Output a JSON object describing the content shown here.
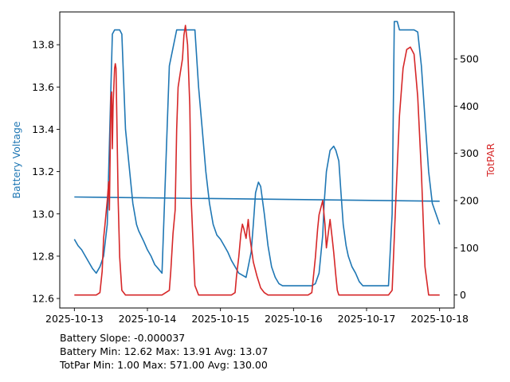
{
  "colors": {
    "battery": "#1f77b4",
    "par": "#d62728",
    "axes": "#000000"
  },
  "stats": {
    "slope": "Battery Slope: -0.000037",
    "battery": "Battery Min: 12.62 Max: 13.91 Avg: 13.07",
    "par": "TotPar Min: 1.00 Max: 571.00 Avg: 130.00"
  },
  "chart_data": {
    "type": "line",
    "x_unit": "days since 2025-10-13",
    "xlim": [
      -0.2,
      5.2
    ],
    "x_ticks": [
      0,
      1,
      2,
      3,
      4,
      5
    ],
    "x_tick_labels": [
      "2025-10-13",
      "2025-10-14",
      "2025-10-15",
      "2025-10-16",
      "2025-10-17",
      "2025-10-18"
    ],
    "ylabel_left": "Battery Voltage",
    "ylim_left": [
      12.555,
      13.955
    ],
    "y_ticks_left": [
      12.6,
      12.8,
      13.0,
      13.2,
      13.4,
      13.6,
      13.8
    ],
    "y_tick_labels_left": [
      "12.6",
      "12.8",
      "13.0",
      "13.2",
      "13.4",
      "13.6",
      "13.8"
    ],
    "ylabel_right": "TotPAR",
    "ylim_right": [
      -27.5,
      599.5
    ],
    "y_ticks_right": [
      0,
      100,
      200,
      300,
      400,
      500
    ],
    "y_tick_labels_right": [
      "0",
      "100",
      "200",
      "300",
      "400",
      "500"
    ],
    "grid": false,
    "legend": "none",
    "series": [
      {
        "axis": "left",
        "x": [
          0.0,
          0.05,
          0.1,
          0.15,
          0.2,
          0.25,
          0.3,
          0.35,
          0.4,
          0.45,
          0.5,
          0.52,
          0.55,
          0.57,
          0.6,
          0.62,
          0.65,
          0.7,
          0.8,
          0.85,
          0.88,
          0.95,
          1.0,
          1.05,
          1.1,
          1.15,
          1.2,
          1.3,
          1.4,
          1.45,
          1.5,
          1.55,
          1.58,
          1.62,
          1.65,
          1.7,
          1.75,
          1.8,
          1.85,
          1.9,
          1.95,
          2.0,
          2.05,
          2.1,
          2.15,
          2.2,
          2.25,
          2.3,
          2.35,
          2.38,
          2.42,
          2.45,
          2.48,
          2.52,
          2.55,
          2.6,
          2.65,
          2.7,
          2.75,
          2.8,
          2.85,
          2.9,
          2.95,
          3.0,
          3.05,
          3.1,
          3.15,
          3.2,
          3.25,
          3.3,
          3.35,
          3.4,
          3.42,
          3.45,
          3.5,
          3.55,
          3.58,
          3.62,
          3.65,
          3.68,
          3.72,
          3.75,
          3.8,
          3.85,
          3.9,
          3.95,
          4.0,
          4.05,
          4.1,
          4.15,
          4.2,
          4.25,
          4.3,
          4.35,
          4.38,
          4.42,
          4.45,
          4.5,
          4.55,
          4.6,
          4.65,
          4.7,
          4.75,
          4.8,
          4.85,
          4.9,
          4.95,
          5.0
        ],
        "y": [
          12.88,
          12.85,
          12.83,
          12.8,
          12.77,
          12.74,
          12.72,
          12.75,
          12.8,
          12.95,
          13.6,
          13.85,
          13.87,
          13.87,
          13.87,
          13.87,
          13.85,
          13.4,
          13.05,
          12.95,
          12.92,
          12.87,
          12.83,
          12.8,
          12.76,
          12.74,
          12.72,
          13.7,
          13.87,
          13.87,
          13.87,
          13.87,
          13.87,
          13.87,
          13.87,
          13.6,
          13.4,
          13.2,
          13.05,
          12.95,
          12.9,
          12.88,
          12.85,
          12.82,
          12.78,
          12.75,
          12.72,
          12.71,
          12.7,
          12.75,
          12.82,
          12.95,
          13.1,
          13.15,
          13.13,
          13.0,
          12.85,
          12.75,
          12.7,
          12.67,
          12.66,
          12.66,
          12.66,
          12.66,
          12.66,
          12.66,
          12.66,
          12.66,
          12.66,
          12.67,
          12.72,
          12.9,
          13.05,
          13.2,
          13.3,
          13.32,
          13.3,
          13.25,
          13.1,
          12.95,
          12.85,
          12.8,
          12.75,
          12.72,
          12.68,
          12.66,
          12.66,
          12.66,
          12.66,
          12.66,
          12.66,
          12.66,
          12.66,
          13.0,
          13.91,
          13.91,
          13.87,
          13.87,
          13.87,
          13.87,
          13.87,
          13.86,
          13.7,
          13.45,
          13.2,
          13.05,
          13.0,
          12.95
        ]
      },
      {
        "axis": "left",
        "x": [
          0.0,
          5.0
        ],
        "y": [
          13.08,
          13.06
        ]
      },
      {
        "axis": "right",
        "x": [
          0.0,
          0.3,
          0.35,
          0.38,
          0.4,
          0.42,
          0.45,
          0.47,
          0.48,
          0.5,
          0.51,
          0.52,
          0.53,
          0.55,
          0.56,
          0.57,
          0.6,
          0.62,
          0.65,
          0.7,
          0.75,
          0.8,
          1.0,
          1.2,
          1.3,
          1.32,
          1.35,
          1.38,
          1.4,
          1.42,
          1.45,
          1.48,
          1.5,
          1.52,
          1.55,
          1.58,
          1.6,
          1.65,
          1.7,
          1.8,
          2.0,
          2.15,
          2.2,
          2.22,
          2.25,
          2.28,
          2.3,
          2.32,
          2.35,
          2.38,
          2.4,
          2.45,
          2.5,
          2.55,
          2.6,
          2.65,
          2.7,
          3.0,
          3.2,
          3.25,
          3.3,
          3.33,
          3.35,
          3.4,
          3.43,
          3.45,
          3.5,
          3.53,
          3.55,
          3.58,
          3.6,
          3.62,
          3.65,
          3.7,
          3.75,
          4.0,
          4.3,
          4.35,
          4.4,
          4.45,
          4.5,
          4.55,
          4.6,
          4.65,
          4.7,
          4.75,
          4.8,
          4.85,
          5.0
        ],
        "y": [
          0,
          0,
          5,
          50,
          120,
          150,
          200,
          240,
          180,
          420,
          430,
          310,
          400,
          480,
          490,
          480,
          200,
          80,
          10,
          0,
          0,
          0,
          0,
          0,
          10,
          50,
          130,
          180,
          350,
          440,
          470,
          500,
          550,
          571,
          530,
          400,
          200,
          20,
          0,
          0,
          0,
          0,
          5,
          40,
          80,
          130,
          150,
          140,
          120,
          160,
          125,
          70,
          40,
          15,
          5,
          0,
          0,
          0,
          0,
          5,
          80,
          140,
          170,
          200,
          150,
          100,
          160,
          120,
          90,
          40,
          10,
          0,
          0,
          0,
          0,
          0,
          0,
          10,
          200,
          380,
          480,
          520,
          525,
          510,
          420,
          260,
          60,
          0,
          0
        ]
      }
    ]
  }
}
